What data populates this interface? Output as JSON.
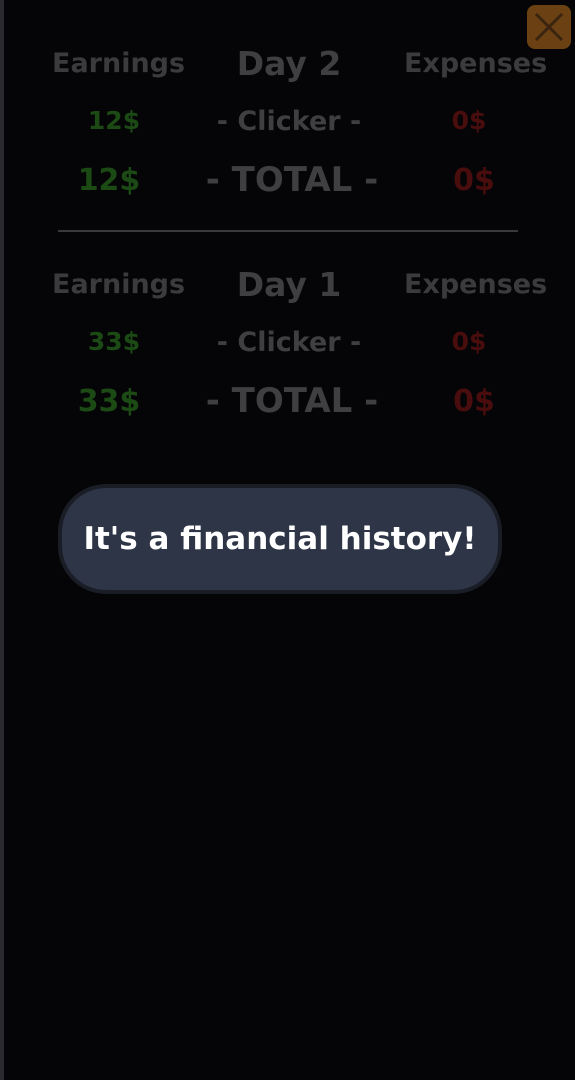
{
  "close_button": {
    "icon": "close-icon",
    "color": "#6b4012"
  },
  "days": [
    {
      "earnings_label": "Earnings",
      "day_label": "Day 2",
      "expenses_label": "Expenses",
      "clicker_label": "- Clicker -",
      "clicker_earnings": "12$",
      "clicker_expenses": "0$",
      "total_label": "- TOTAL -",
      "total_earnings": "12$",
      "total_expenses": "0$"
    },
    {
      "earnings_label": "Earnings",
      "day_label": "Day 1",
      "expenses_label": "Expenses",
      "clicker_label": "- Clicker -",
      "clicker_earnings": "33$",
      "clicker_expenses": "0$",
      "total_label": "- TOTAL -",
      "total_earnings": "33$",
      "total_expenses": "0$"
    }
  ],
  "tooltip": {
    "text": "It's a financial history!"
  },
  "colors": {
    "earnings": "#1b4a14",
    "expenses": "#4a0d0d",
    "background": "#050507",
    "tooltip_bg": "#2e3547"
  }
}
